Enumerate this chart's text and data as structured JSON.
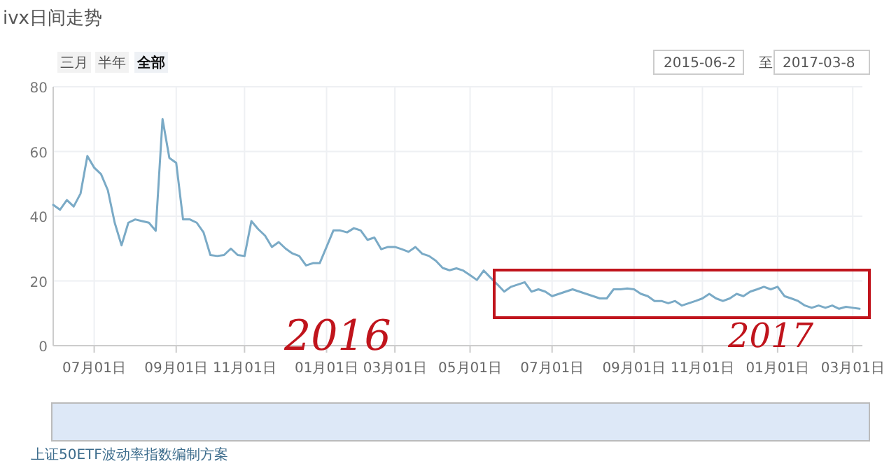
{
  "chart_data": {
    "type": "line",
    "title": "ivx日间走势",
    "categories": [
      null,
      null,
      null,
      null,
      null,
      null,
      "07月01日",
      null,
      null,
      null,
      null,
      null,
      null,
      null,
      null,
      null,
      null,
      null,
      "09月01日",
      null,
      null,
      null,
      null,
      null,
      null,
      null,
      null,
      null,
      "11月01日",
      null,
      null,
      null,
      null,
      null,
      null,
      null,
      null,
      null,
      null,
      null,
      "01月01日",
      null,
      null,
      null,
      null,
      null,
      null,
      null,
      null,
      null,
      "03月01日",
      null,
      null,
      null,
      null,
      null,
      null,
      null,
      null,
      null,
      null,
      "05月01日",
      null,
      null,
      null,
      null,
      null,
      null,
      null,
      null,
      null,
      null,
      null,
      "07月01日",
      null,
      null,
      null,
      null,
      null,
      null,
      null,
      null,
      null,
      null,
      null,
      "09月01日",
      null,
      null,
      null,
      null,
      null,
      null,
      null,
      null,
      null,
      "11月01日",
      null,
      null,
      null,
      null,
      null,
      null,
      null,
      null,
      null,
      null,
      "01月01日",
      null,
      null,
      null,
      null,
      null,
      null,
      null,
      null,
      null,
      null,
      "03月01日",
      null
    ],
    "series": [
      {
        "color": "#7aaac6",
        "values": [
          43.5,
          42,
          45,
          43,
          47,
          58.6,
          55,
          53,
          48,
          38,
          31,
          38,
          39,
          38.5,
          38,
          35.5,
          70,
          58,
          56.5,
          39,
          39,
          38,
          35,
          28,
          27.7,
          28,
          30,
          28,
          27.7,
          38.5,
          36,
          34,
          30.5,
          32,
          30,
          28.5,
          27.7,
          24.8,
          25.5,
          25.5,
          30.5,
          35.6,
          35.6,
          35,
          36.3,
          35.6,
          32.7,
          33.4,
          29.8,
          30.5,
          30.5,
          29.8,
          29,
          30.5,
          28.4,
          27.7,
          26.2,
          24,
          23.3,
          23.9,
          23.2,
          21.8,
          20.3,
          23.2,
          21,
          18.9,
          16.7,
          18.2,
          18.9,
          19.6,
          16.7,
          17.4,
          16.7,
          15.3,
          16,
          16.7,
          17.4,
          16.7,
          16,
          15.3,
          14.6,
          14.6,
          17.4,
          17.4,
          17.7,
          17.4,
          16,
          15.3,
          13.8,
          13.8,
          13.1,
          13.8,
          12.4,
          13.1,
          13.8,
          14.6,
          16,
          14.6,
          13.8,
          14.6,
          16,
          15.3,
          16.7,
          17.4,
          18.2,
          17.4,
          18.2,
          15.3,
          14.6,
          13.8,
          12.4,
          11.7,
          12.4,
          11.7,
          12.4,
          11.4,
          12,
          11.7,
          11.4
        ]
      }
    ],
    "ylim": [
      0,
      80
    ],
    "yticks": [
      0,
      20,
      40,
      60,
      80
    ],
    "grid": true,
    "marker": "none",
    "line_style": "solid",
    "annotations": [
      "三月",
      "半年",
      "全部",
      "2015-06-2",
      "至",
      "2017-03-8",
      "2016",
      "2017",
      "上证50ETF波动率指数编制方案"
    ]
  }
}
